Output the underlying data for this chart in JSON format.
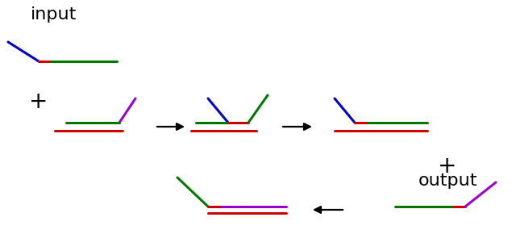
{
  "bg_color": "#ffffff",
  "blue": "#0000cc",
  "red": "#cc0000",
  "green": "#007700",
  "purple": "#9900cc",
  "lw": 2.2,
  "text_input": "input",
  "text_output": "output",
  "text_plus": "+"
}
